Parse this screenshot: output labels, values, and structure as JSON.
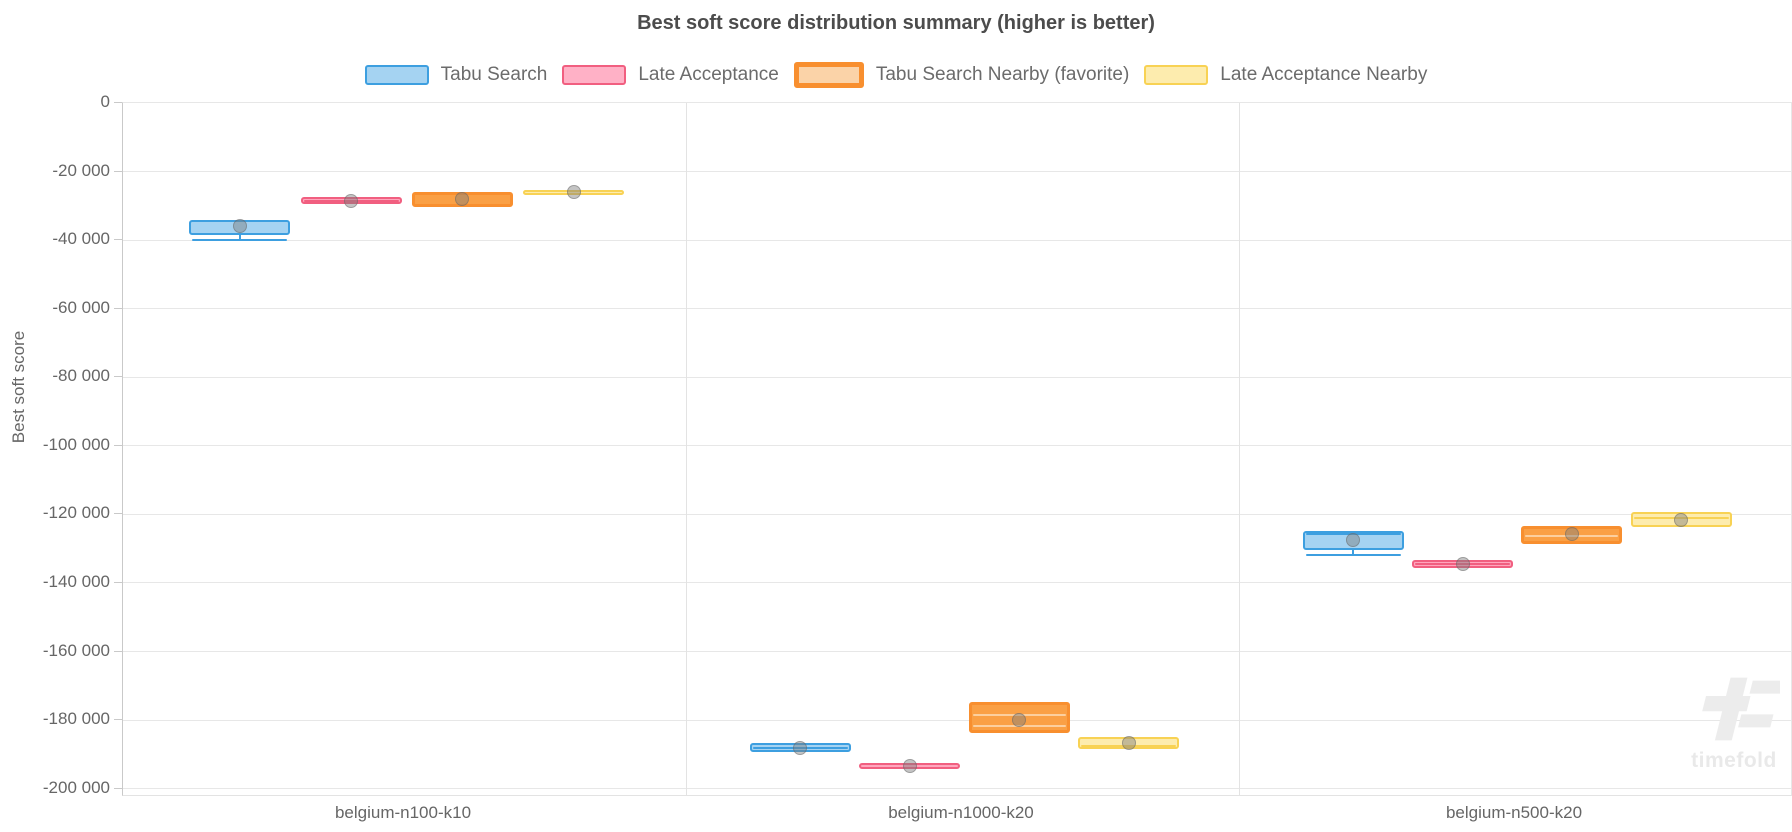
{
  "chart_data": {
    "type": "boxplot",
    "title": "Best soft score distribution summary (higher is better)",
    "ylabel": "Best soft score",
    "ylim": [
      -201800,
      0
    ],
    "grid": true,
    "legend_position": "top-center",
    "yticks": [
      {
        "value": 0,
        "label": "0"
      },
      {
        "value": -20000,
        "label": "-20 000"
      },
      {
        "value": -40000,
        "label": "-40 000"
      },
      {
        "value": -60000,
        "label": "-60 000"
      },
      {
        "value": -80000,
        "label": "-80 000"
      },
      {
        "value": -100000,
        "label": "-100 000"
      },
      {
        "value": -120000,
        "label": "-120 000"
      },
      {
        "value": -140000,
        "label": "-140 000"
      },
      {
        "value": -160000,
        "label": "-160 000"
      },
      {
        "value": -180000,
        "label": "-180 000"
      },
      {
        "value": -200000,
        "label": "-200 000"
      }
    ],
    "categories": [
      "belgium-n100-k10",
      "belgium-n1000-k20",
      "belgium-n500-k20"
    ],
    "series": [
      {
        "name": "Tabu Search",
        "color_border": "#3d9fe0",
        "color_fill": "#a5d3f2",
        "legend_fill": "#a5d3f2",
        "legend_border_width": 2,
        "box_border_width": 2,
        "line_color": "#3d9fe0",
        "boxes": [
          {
            "q3": -34000,
            "q1": -38600,
            "median_lines": [
              -34500
            ],
            "mean": -35900,
            "whisker_low": -39900
          },
          {
            "q3": -186800,
            "q1": -189300,
            "median_lines": [
              -188100
            ],
            "mean": -188200
          },
          {
            "q3": -124900,
            "q1": -130300,
            "median_lines": [
              -125800
            ],
            "mean": -127400,
            "whisker_low": -131900
          }
        ]
      },
      {
        "name": "Late Acceptance",
        "color_border": "#f15f80",
        "color_fill": "#ffa6bd",
        "legend_fill": "#ffb1c6",
        "legend_border_width": 2,
        "box_border_width": 2,
        "line_color": "#f15f80",
        "boxes": [
          {
            "q3": -27300,
            "q1": -29600,
            "median_lines": [
              -28500
            ],
            "mean": -28600
          },
          {
            "q3": -192600,
            "q1": -194300,
            "median_lines": [],
            "mean": -193500
          },
          {
            "q3": -133300,
            "q1": -135500,
            "median_lines": [
              -134400
            ],
            "mean": -134500
          }
        ]
      },
      {
        "name": "Tabu Search Nearby (favorite)",
        "color_border": "#f88f2f",
        "color_fill": "#faa045",
        "legend_fill": "#fbd3a8",
        "legend_border_width": 5,
        "box_border_width": 3,
        "line_color": "#fccf9e",
        "boxes": [
          {
            "q3": -26000,
            "q1": -30400,
            "median_lines": [],
            "mean": -28100
          },
          {
            "q3": -174700,
            "q1": -183900,
            "median_lines": [
              -178400,
              -181700
            ],
            "mean": -179900
          },
          {
            "q3": -123300,
            "q1": -128500,
            "median_lines": [
              -126200
            ],
            "mean": -125700
          }
        ]
      },
      {
        "name": "Late Acceptance Nearby",
        "color_border": "#f8d254",
        "color_fill": "#fdecae",
        "legend_fill": "#fdecae",
        "legend_border_width": 2,
        "box_border_width": 2,
        "line_color": "#f8d254",
        "boxes": [
          {
            "q3": -25300,
            "q1": -26900,
            "median_lines": [
              -26600
            ],
            "mean": -26100
          },
          {
            "q3": -184900,
            "q1": -188400,
            "median_lines": [
              -187400
            ],
            "mean": -186800
          },
          {
            "q3": -119400,
            "q1": -123800,
            "median_lines": [
              -120900
            ],
            "mean": -121700
          }
        ]
      }
    ],
    "watermark": {
      "text": "timefold"
    }
  }
}
